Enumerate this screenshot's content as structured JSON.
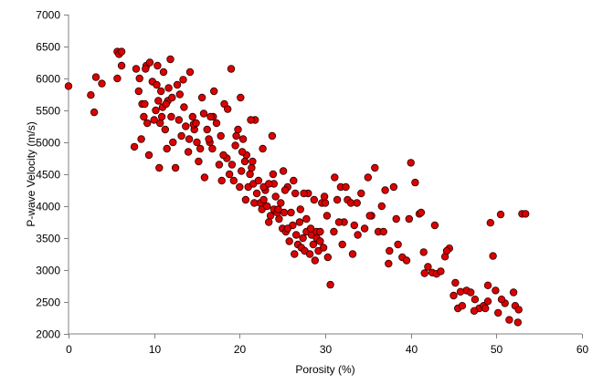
{
  "chart_data": {
    "type": "scatter",
    "title": "",
    "xlabel": "Porosity (%)",
    "ylabel": "P-wave Velocity (m/s)",
    "xlim": [
      0,
      60
    ],
    "ylim": [
      2000,
      7000
    ],
    "xticks": [
      0,
      10,
      20,
      30,
      40,
      50,
      60
    ],
    "yticks": [
      2000,
      2500,
      3000,
      3500,
      4000,
      4500,
      5000,
      5500,
      6000,
      6500,
      7000
    ],
    "grid": false,
    "legend": "none",
    "marker": {
      "shape": "circle",
      "fill": "#dd0000",
      "stroke": "#2a0000"
    },
    "axis_color": "#808080",
    "x": [
      0.0,
      2.6,
      3.0,
      3.2,
      3.9,
      5.7,
      5.9,
      6.2,
      5.7,
      6.2,
      7.7,
      7.9,
      8.2,
      8.3,
      8.6,
      8.8,
      8.9,
      9.1,
      9.2,
      9.4,
      9.5,
      9.8,
      10.0,
      10.2,
      10.4,
      10.5,
      10.6,
      10.7,
      10.8,
      10.9,
      11.0,
      11.1,
      11.3,
      11.5,
      11.7,
      11.9,
      12.0,
      12.2,
      12.5,
      12.7,
      13.0,
      13.2,
      13.5,
      13.7,
      14.0,
      14.2,
      14.5,
      14.7,
      15.0,
      15.2,
      15.6,
      15.9,
      16.2,
      16.5,
      16.8,
      17.0,
      17.3,
      17.6,
      17.9,
      18.2,
      18.5,
      18.8,
      19.0,
      19.3,
      19.5,
      19.8,
      20.0,
      20.2,
      20.4,
      20.6,
      20.8,
      21.0,
      21.2,
      21.4,
      21.6,
      21.8,
      22.0,
      22.2,
      22.4,
      22.6,
      22.8,
      23.0,
      23.2,
      23.4,
      23.6,
      23.8,
      24.0,
      24.2,
      24.4,
      24.6,
      24.8,
      25.0,
      25.2,
      25.4,
      25.6,
      25.8,
      26.0,
      26.2,
      26.4,
      26.6,
      26.8,
      27.0,
      27.2,
      27.4,
      27.6,
      27.8,
      28.0,
      28.2,
      28.4,
      28.6,
      28.8,
      29.0,
      29.2,
      29.4,
      29.6,
      29.8,
      30.0,
      30.3,
      30.6,
      31.0,
      31.4,
      31.8,
      32.2,
      32.6,
      33.0,
      33.4,
      33.8,
      34.2,
      34.6,
      35.0,
      35.4,
      35.8,
      36.2,
      36.6,
      37.0,
      37.5,
      38.0,
      38.5,
      39.0,
      39.5,
      40.0,
      40.5,
      41.0,
      41.5,
      42.0,
      42.5,
      43.0,
      43.5,
      44.0,
      44.5,
      45.0,
      45.5,
      46.0,
      46.5,
      47.0,
      47.5,
      48.0,
      48.5,
      49.0,
      49.3,
      49.6,
      49.9,
      50.2,
      50.5,
      51.0,
      51.5,
      52.0,
      52.5,
      53.0,
      53.4,
      13.4,
      14.6,
      16.9,
      18.6,
      20.1,
      21.3,
      22.7,
      23.9,
      25.1,
      26.3,
      27.5,
      28.7,
      29.9,
      31.1,
      32.4,
      33.7,
      35.2,
      36.8,
      38.3,
      39.8,
      41.2,
      42.8,
      44.2,
      45.8,
      47.4,
      49.0,
      50.6,
      52.2,
      10.3,
      11.6,
      12.9,
      14.1,
      15.4,
      16.6,
      17.8,
      19.1,
      20.3,
      21.5,
      22.8,
      24.0,
      25.3,
      26.5,
      27.8,
      29.0,
      30.2,
      31.6,
      9.0,
      12.1,
      15.8,
      19.6,
      23.4,
      27.1,
      8.5,
      11.4,
      14.9,
      18.1,
      21.7,
      25.6,
      29.4,
      33.2,
      37.4,
      41.6,
      45.2,
      48.7,
      52.6,
      16.4,
      20.7,
      24.5,
      28.3,
      32.0
    ],
    "y": [
      5880,
      5740,
      5470,
      6020,
      5920,
      6420,
      6380,
      6200,
      6000,
      6420,
      4930,
      6150,
      5800,
      6000,
      5600,
      5400,
      5600,
      6200,
      5300,
      4800,
      6250,
      5950,
      5350,
      5500,
      6200,
      5650,
      4600,
      5300,
      5800,
      5400,
      5550,
      6100,
      5200,
      4900,
      5850,
      6300,
      5400,
      5000,
      4600,
      5900,
      5750,
      5100,
      5550,
      5250,
      4850,
      6100,
      5400,
      5200,
      5000,
      4700,
      5700,
      4450,
      5200,
      5000,
      4900,
      5800,
      5300,
      4650,
      4400,
      5600,
      4750,
      4500,
      6150,
      4400,
      4950,
      5200,
      4300,
      4550,
      5050,
      4700,
      4800,
      4300,
      4500,
      4600,
      4350,
      5350,
      4200,
      4400,
      4050,
      3950,
      4100,
      4250,
      4000,
      3750,
      3850,
      5100,
      3950,
      4150,
      3900,
      3800,
      4050,
      3650,
      3900,
      3600,
      4300,
      3450,
      3900,
      3700,
      3250,
      3550,
      3400,
      3750,
      3350,
      3500,
      3300,
      3600,
      4200,
      3250,
      3550,
      3400,
      3150,
      3500,
      3300,
      3450,
      4050,
      3350,
      4050,
      3200,
      2770,
      3600,
      4100,
      4300,
      3750,
      4100,
      4050,
      3700,
      3550,
      4200,
      3650,
      4450,
      3850,
      4600,
      3600,
      4000,
      4250,
      3300,
      4300,
      3400,
      3200,
      3150,
      4680,
      4370,
      3880,
      3280,
      3050,
      2960,
      2940,
      2980,
      3210,
      3340,
      2600,
      2400,
      2440,
      2680,
      2650,
      2540,
      2400,
      2440,
      2510,
      3740,
      3220,
      2680,
      2330,
      3870,
      2480,
      2220,
      2650,
      2180,
      3880,
      3880,
      5980,
      5280,
      5400,
      5520,
      5700,
      5350,
      4900,
      4500,
      4550,
      4400,
      4200,
      4100,
      4150,
      4450,
      4300,
      4050,
      3850,
      3600,
      3800,
      3800,
      3900,
      3700,
      3300,
      2660,
      2360,
      2760,
      2540,
      2440,
      5900,
      5650,
      5350,
      5050,
      4900,
      5400,
      5100,
      4650,
      4850,
      4700,
      4300,
      4350,
      4250,
      4200,
      3800,
      3600,
      3850,
      3750,
      6150,
      5700,
      5450,
      5100,
      4350,
      3950,
      5050,
      5600,
      5300,
      4800,
      4050,
      3650,
      3600,
      3250,
      3100,
      2950,
      2800,
      2400,
      2380,
      5050,
      4100,
      3950,
      3650,
      3400
    ]
  }
}
